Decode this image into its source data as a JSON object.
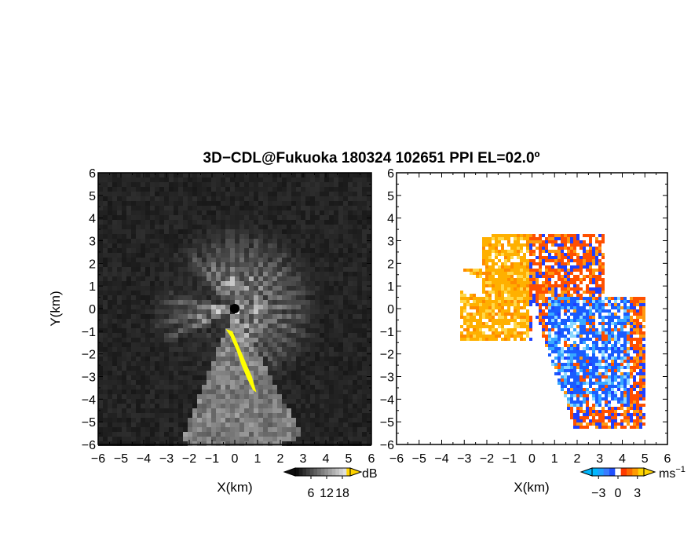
{
  "title": "3D−CDL@Fukuoka 180324 102651 PPI EL=02.0º",
  "colors": {
    "background": "#ffffff",
    "left_field": "#141414",
    "clutter_flag": "#ffff00",
    "velocity_negative": "#1a5cff",
    "velocity_zero": "#ffffff",
    "velocity_positive": "#ff6a00",
    "cbar_low": "#00b8ff",
    "cbar_high": "#ffd400"
  },
  "chart_data": [
    {
      "type": "heatmap",
      "name": "intensity",
      "xlabel": "X(km)",
      "ylabel": "Y(km)",
      "xlim": [
        -6,
        6
      ],
      "ylim": [
        -6,
        6
      ],
      "xticks": [
        "−6",
        "−5",
        "−4",
        "−3",
        "−2",
        "−1",
        "0",
        "1",
        "2",
        "3",
        "4",
        "5",
        "6"
      ],
      "yticks": [
        "6",
        "5",
        "4",
        "3",
        "2",
        "1",
        "0",
        "−1",
        "−2",
        "−3",
        "−4",
        "−5",
        "−6"
      ],
      "colorbar": {
        "unit": "dB",
        "tick_labels": [
          "6",
          "12",
          "18"
        ],
        "range": [
          0,
          21
        ],
        "extend": "both"
      }
    },
    {
      "type": "heatmap",
      "name": "doppler-velocity",
      "xlabel": "X(km)",
      "xlim": [
        -6,
        6
      ],
      "ylim": [
        -6,
        6
      ],
      "xticks": [
        "−6",
        "−5",
        "−4",
        "−3",
        "−2",
        "−1",
        "0",
        "1",
        "2",
        "3",
        "4",
        "5",
        "6"
      ],
      "yticks": [
        "6",
        "5",
        "4",
        "3",
        "2",
        "1",
        "0",
        "−1",
        "−2",
        "−3",
        "−4",
        "−5",
        "−6"
      ],
      "colorbar": {
        "unit": "ms",
        "unit_exponent": "−1",
        "tick_labels": [
          "−3",
          "0",
          "3"
        ],
        "range": [
          -4,
          4
        ],
        "extend": "both"
      }
    }
  ]
}
